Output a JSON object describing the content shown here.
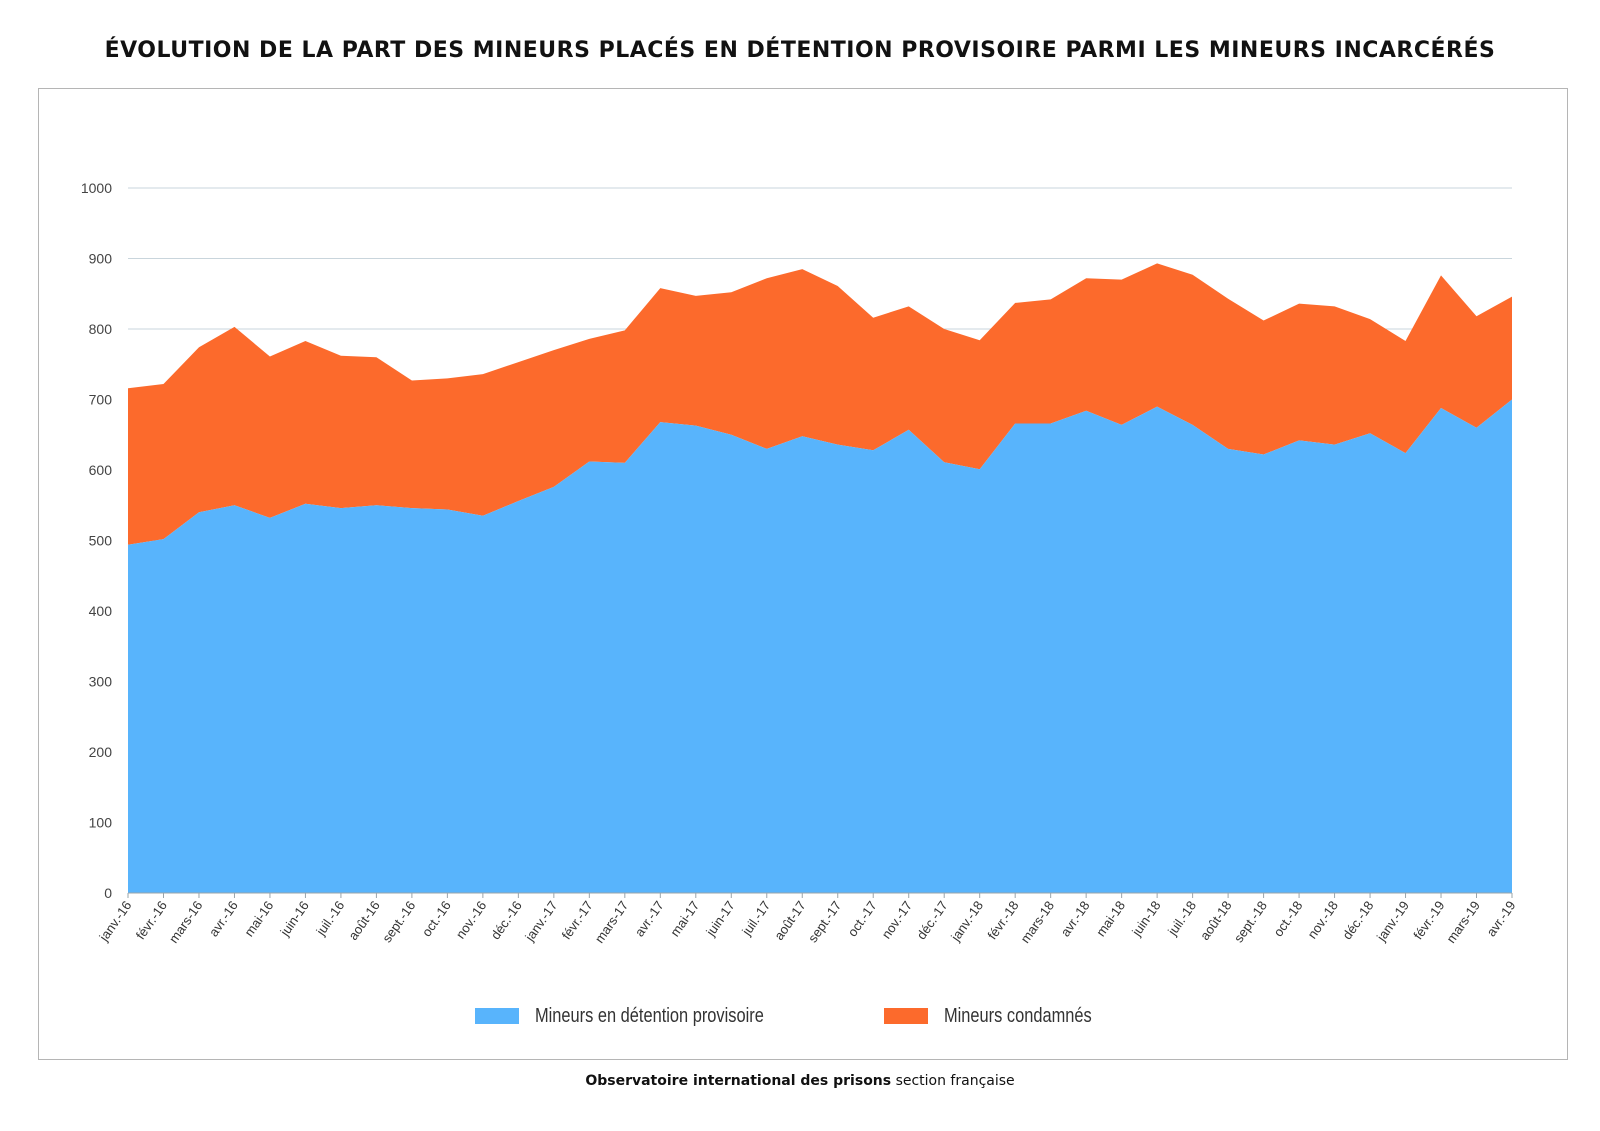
{
  "title": "ÉVOLUTION DE LA PART DES MINEURS PLACÉS EN DÉTENTION PROVISOIRE PARMI LES MINEURS INCARCÉRÉS",
  "footer": {
    "org": "Observatoire international des prisons",
    "section": "section française"
  },
  "colors": {
    "detention": "#58b4fc",
    "condamnes": "#fc6a2c",
    "grid": "#c9d5dc"
  },
  "chart_data": {
    "type": "area",
    "stacked": true,
    "ylim": [
      0,
      1000
    ],
    "yticks": [
      0,
      100,
      200,
      300,
      400,
      500,
      600,
      700,
      800,
      900,
      1000
    ],
    "grid": true,
    "legend_position": "bottom",
    "categories": [
      "janv.-16",
      "févr.-16",
      "mars-16",
      "avr.-16",
      "mai-16",
      "juin-16",
      "juil.-16",
      "août-16",
      "sept.-16",
      "oct.-16",
      "nov.-16",
      "déc.-16",
      "janv.-17",
      "févr.-17",
      "mars-17",
      "avr.-17",
      "mai-17",
      "juin-17",
      "juil.-17",
      "août-17",
      "sept.-17",
      "oct.-17",
      "nov.-17",
      "déc.-17",
      "janv.-18",
      "févr.-18",
      "mars-18",
      "avr.-18",
      "mai-18",
      "juin-18",
      "juil.-18",
      "août-18",
      "sept.-18",
      "oct.-18",
      "nov.-18",
      "déc.-18",
      "janv.-19",
      "févr.-19",
      "mars-19",
      "avr.-19"
    ],
    "series": [
      {
        "name": "Mineurs en détention provisoire",
        "values": [
          494,
          502,
          540,
          550,
          532,
          552,
          546,
          550,
          546,
          544,
          535,
          556,
          576,
          612,
          610,
          668,
          663,
          650,
          630,
          648,
          636,
          628,
          657,
          611,
          601,
          666,
          666,
          684,
          664,
          690,
          664,
          630,
          622,
          642,
          636,
          652,
          624,
          688,
          660,
          700
        ]
      },
      {
        "name": "Mineurs condamnés",
        "values": [
          222,
          220,
          234,
          253,
          229,
          231,
          216,
          210,
          181,
          186,
          201,
          197,
          194,
          174,
          188,
          190,
          184,
          202,
          242,
          237,
          225,
          188,
          175,
          189,
          183,
          171,
          176,
          188,
          206,
          203,
          213,
          213,
          190,
          194,
          196,
          162,
          159,
          188,
          158,
          146
        ]
      }
    ]
  }
}
